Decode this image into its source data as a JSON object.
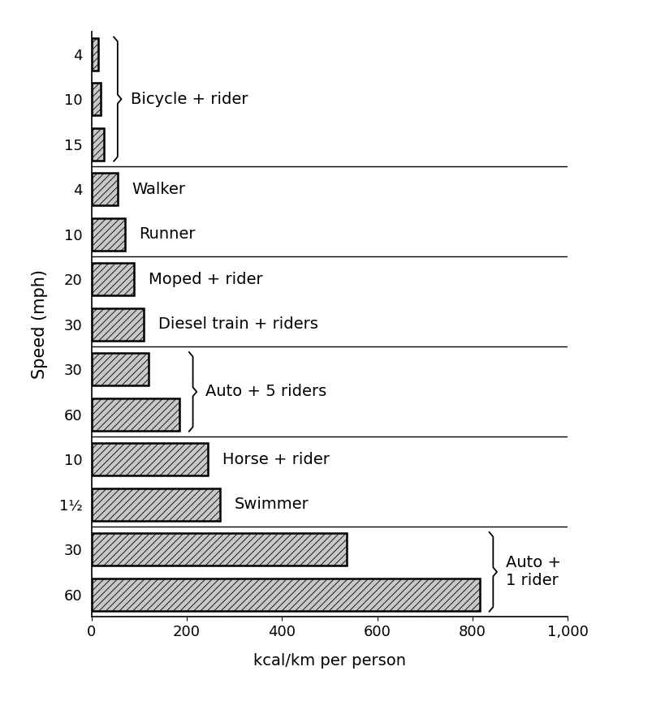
{
  "chart_data": {
    "type": "bar",
    "orientation": "horizontal",
    "xlabel": "kcal/km per person",
    "ylabel": "Speed (mph)",
    "color": "#c8c8c8",
    "xlim": [
      0,
      1000
    ],
    "xticks": [
      0,
      200,
      400,
      600,
      800,
      {
        "value": 1000,
        "label": "1,000"
      }
    ],
    "grid": false,
    "sections": [
      [
        {
          "label": "Bicycle + rider",
          "categories": [
            "4",
            "10",
            "15"
          ],
          "values": [
            15,
            20,
            27
          ]
        }
      ],
      [
        {
          "label": "Walker",
          "categories": [
            "4"
          ],
          "values": [
            55
          ]
        },
        {
          "label": "Runner",
          "categories": [
            "10"
          ],
          "values": [
            70
          ]
        }
      ],
      [
        {
          "label": "Moped + rider",
          "categories": [
            "20"
          ],
          "values": [
            90
          ]
        },
        {
          "label": "Diesel train + riders",
          "categories": [
            "30"
          ],
          "values": [
            110
          ]
        }
      ],
      [
        {
          "label": "Auto + 5 riders",
          "categories": [
            "30",
            "60"
          ],
          "values": [
            120,
            185
          ]
        }
      ],
      [
        {
          "label": "Horse + rider",
          "categories": [
            "10"
          ],
          "values": [
            245
          ]
        },
        {
          "label": "Swimmer",
          "categories": [
            "1½"
          ],
          "values": [
            270
          ]
        }
      ],
      [
        {
          "label": "Auto +\n1 rider",
          "categories": [
            "30",
            "60"
          ],
          "values": [
            535,
            815
          ]
        }
      ]
    ]
  }
}
